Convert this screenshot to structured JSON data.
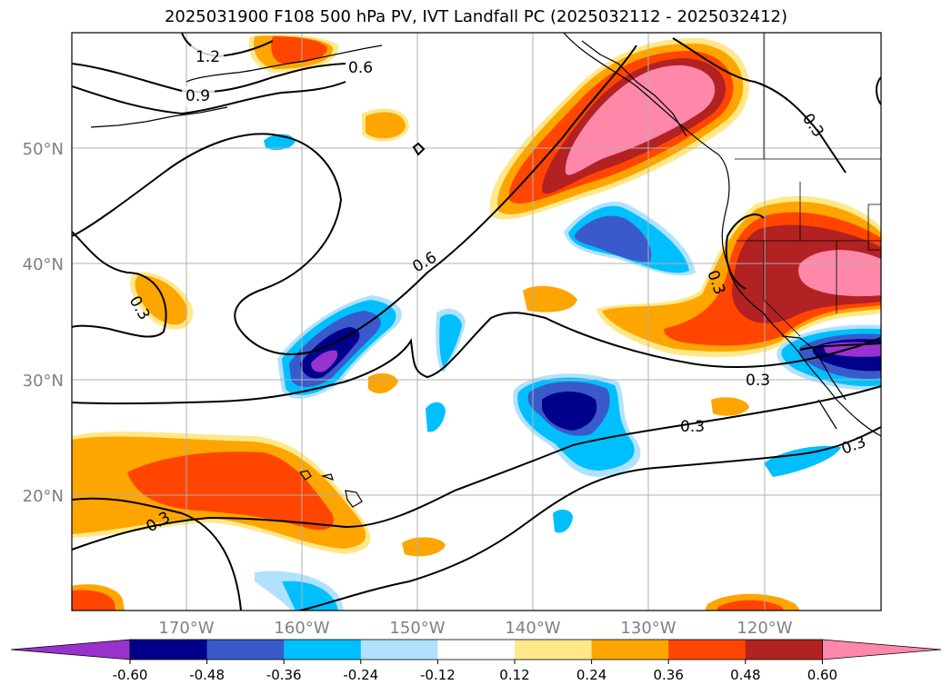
{
  "title": "2025031900 F108 500 hPa PV, IVT Landfall PC (2025032112 - 2025032412)",
  "map": {
    "lon_labels": [
      "170°W",
      "160°W",
      "150°W",
      "140°W",
      "130°W",
      "120°W"
    ],
    "lat_labels": [
      "50°N",
      "40°N",
      "30°N",
      "20°N"
    ],
    "contour_labels": [
      "1.2",
      "0.9",
      "0.6",
      "0.6",
      "0.3",
      "0.3",
      "0.3",
      "0.3",
      "0.3",
      "0.3",
      "0.3"
    ]
  },
  "colorbar": {
    "ticks": [
      "-0.60",
      "-0.48",
      "-0.36",
      "-0.24",
      "-0.12",
      "0.12",
      "0.24",
      "0.36",
      "0.48",
      "0.60"
    ],
    "colors": [
      "#9932cc",
      "#00008b",
      "#3a5acb",
      "#00bfff",
      "#b0e2ff",
      "#ffffff",
      "#ffe88a",
      "#ffa500",
      "#ff4500",
      "#b22222",
      "#ff88aa"
    ]
  }
}
